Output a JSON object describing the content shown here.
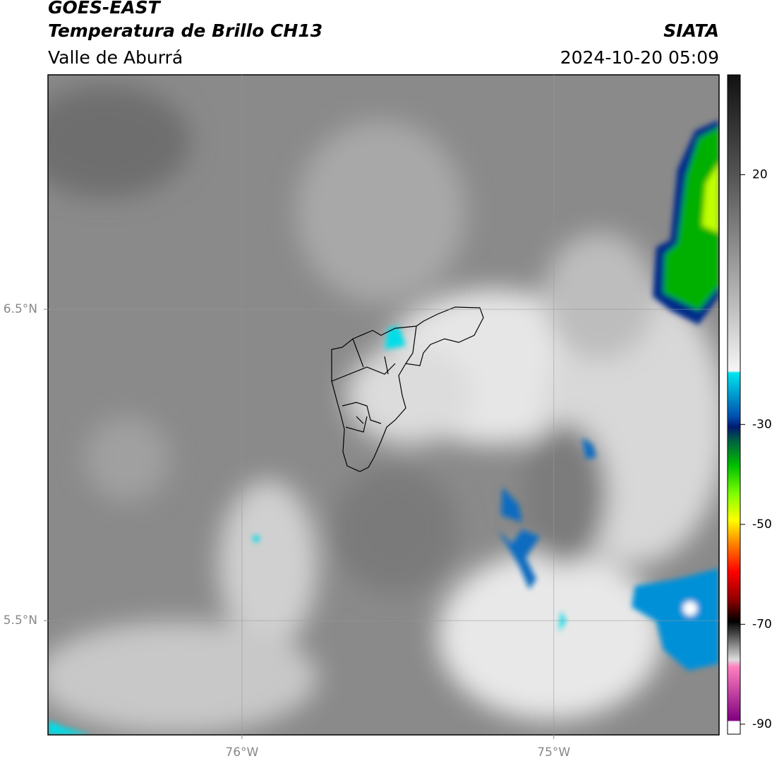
{
  "header": {
    "title": "GOES-EAST",
    "subtitle": "Temperatura de Brillo CH13",
    "region": "Valle de Aburrá",
    "source": "SIATA",
    "timestamp": "2024-10-20 05:09"
  },
  "map": {
    "xlim": [
      -76.622,
      -74.47
    ],
    "ylim": [
      5.133,
      7.253
    ],
    "xticks": [
      {
        "value": -76,
        "label": "76°W"
      },
      {
        "value": -75,
        "label": "75°W"
      }
    ],
    "yticks": [
      {
        "value": 6.5,
        "label": "6.5°N"
      },
      {
        "value": 5.5,
        "label": "5.5°N"
      }
    ],
    "grid": true
  },
  "colorbar": {
    "lim": [
      -92,
      40
    ],
    "ticks": [
      20,
      -30,
      -50,
      -70,
      -90
    ]
  }
}
